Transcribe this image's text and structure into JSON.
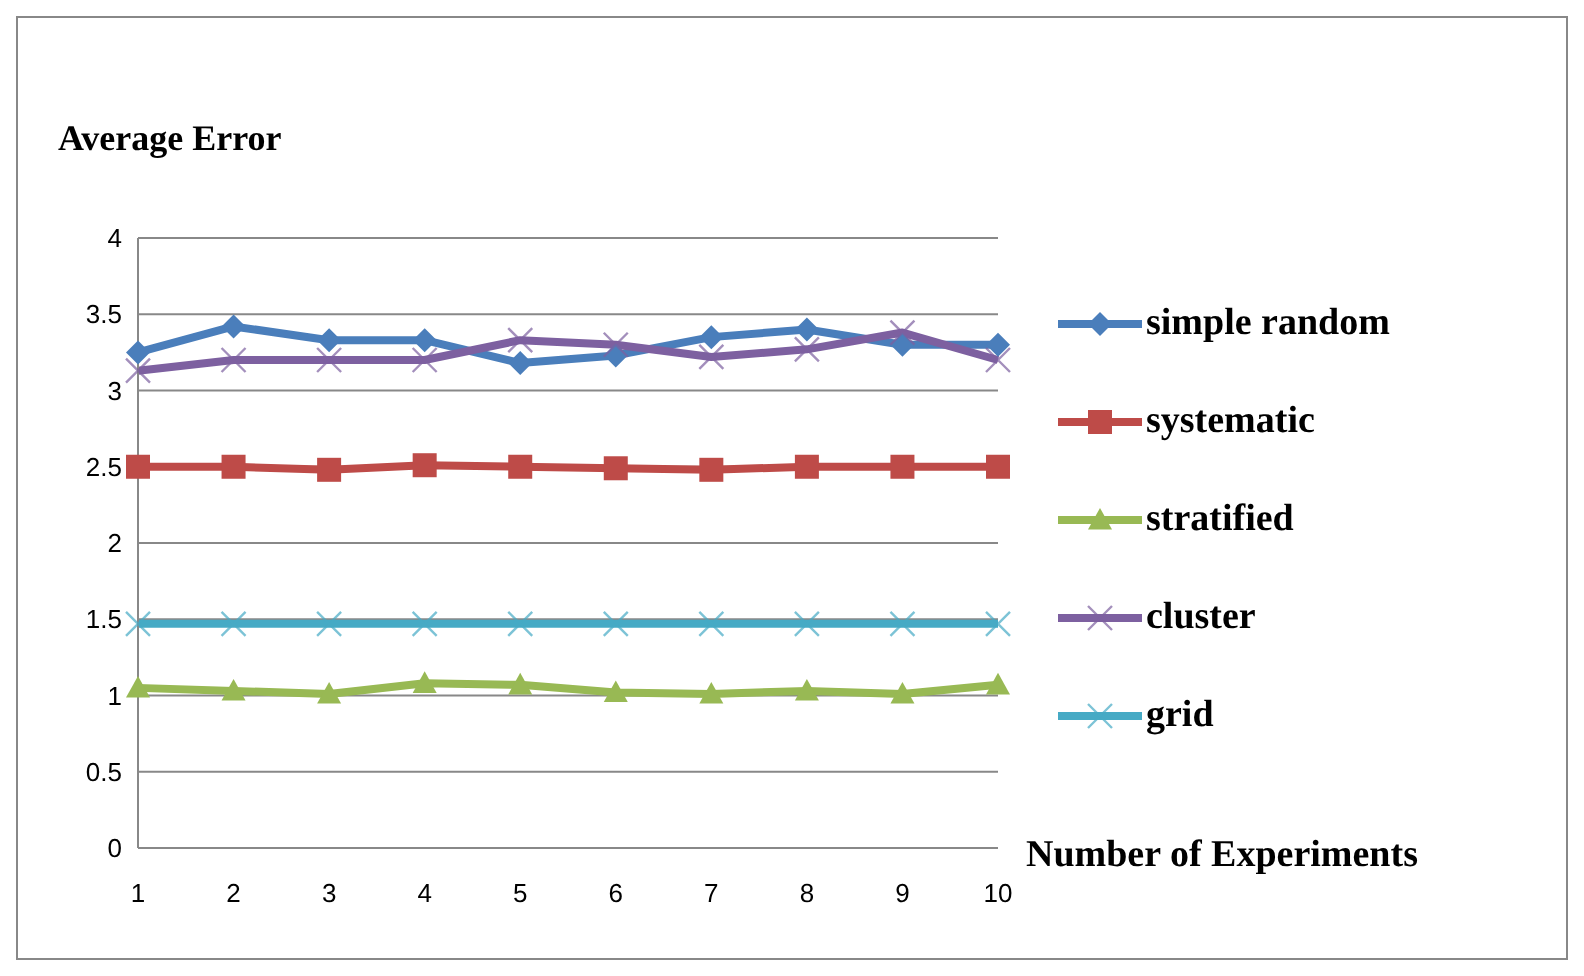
{
  "chart_data": {
    "type": "line",
    "ylabel": "Average Error",
    "xlabel": "Number of Experiments",
    "categories": [
      "1",
      "2",
      "3",
      "4",
      "5",
      "6",
      "7",
      "8",
      "9",
      "10"
    ],
    "ylim": [
      0,
      4
    ],
    "yticks": [
      0,
      0.5,
      1,
      1.5,
      2,
      2.5,
      3,
      3.5,
      4
    ],
    "grid": "y",
    "legend": "right",
    "series": [
      {
        "name": "simple random",
        "color": "#4a7ebb",
        "marker": "diamond",
        "values": [
          3.25,
          3.42,
          3.33,
          3.33,
          3.18,
          3.23,
          3.35,
          3.4,
          3.3,
          3.3
        ]
      },
      {
        "name": "systematic",
        "color": "#be4b48",
        "marker": "square",
        "values": [
          2.5,
          2.5,
          2.48,
          2.51,
          2.5,
          2.49,
          2.48,
          2.5,
          2.5,
          2.5
        ]
      },
      {
        "name": "stratified",
        "color": "#98b954",
        "marker": "triangle",
        "values": [
          1.05,
          1.03,
          1.01,
          1.08,
          1.07,
          1.02,
          1.01,
          1.03,
          1.01,
          1.07
        ]
      },
      {
        "name": "cluster",
        "color": "#7d60a0",
        "marker": "cross",
        "values": [
          3.13,
          3.2,
          3.2,
          3.2,
          3.33,
          3.3,
          3.22,
          3.27,
          3.38,
          3.2
        ]
      },
      {
        "name": "grid",
        "color": "#46aac5",
        "marker": "cross",
        "values": [
          1.47,
          1.47,
          1.47,
          1.47,
          1.47,
          1.47,
          1.47,
          1.47,
          1.47,
          1.47
        ]
      }
    ]
  }
}
